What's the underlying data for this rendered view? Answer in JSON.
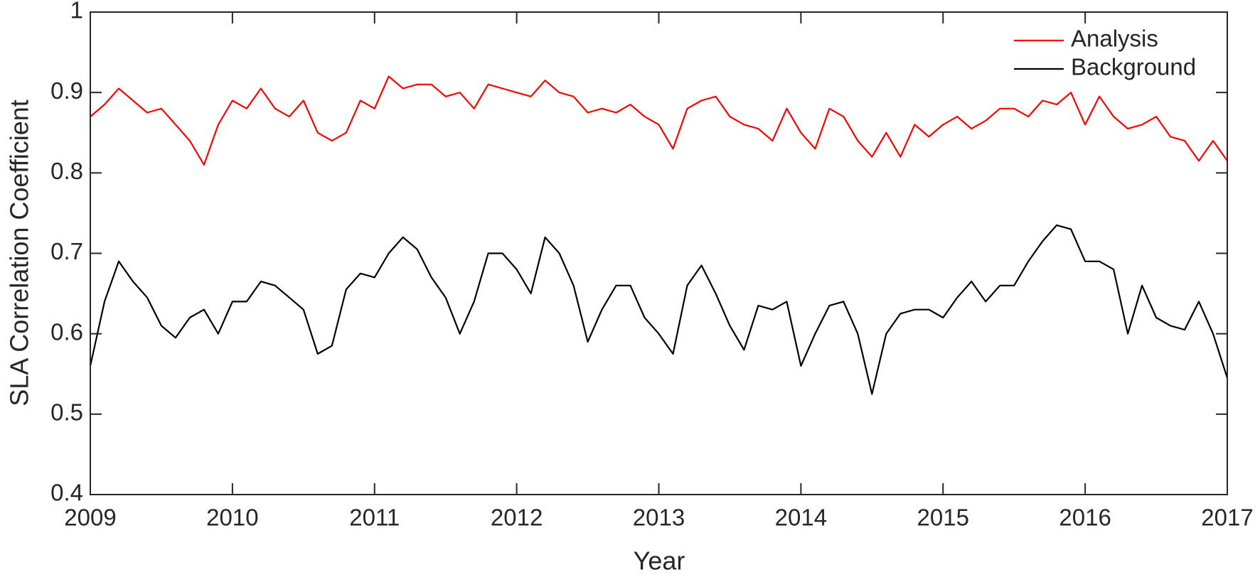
{
  "chart_data": {
    "type": "line",
    "xlabel": "Year",
    "ylabel": "SLA Correlation Coefficient",
    "xlim": [
      2009,
      2017
    ],
    "xticks": [
      2009,
      2010,
      2011,
      2012,
      2013,
      2014,
      2015,
      2016,
      2017
    ],
    "ylim": [
      0.4,
      1
    ],
    "yticks": [
      0.4,
      0.5,
      0.6,
      0.7,
      0.8,
      0.9,
      1
    ],
    "legend": "northeast",
    "x": [
      2009,
      2009.1,
      2009.2,
      2009.3,
      2009.4,
      2009.5,
      2009.6,
      2009.7,
      2009.8,
      2009.9,
      2010,
      2010.1,
      2010.2,
      2010.3,
      2010.4,
      2010.5,
      2010.6,
      2010.7,
      2010.8,
      2010.9,
      2011,
      2011.1,
      2011.2,
      2011.3,
      2011.4,
      2011.5,
      2011.6,
      2011.7,
      2011.8,
      2011.9,
      2012,
      2012.1,
      2012.2,
      2012.3,
      2012.4,
      2012.5,
      2012.6,
      2012.7,
      2012.8,
      2012.9,
      2013,
      2013.1,
      2013.2,
      2013.3,
      2013.4,
      2013.5,
      2013.6,
      2013.7,
      2013.8,
      2013.9,
      2014,
      2014.1,
      2014.2,
      2014.3,
      2014.4,
      2014.5,
      2014.6,
      2014.7,
      2014.8,
      2014.9,
      2015,
      2015.1,
      2015.2,
      2015.3,
      2015.4,
      2015.5,
      2015.6,
      2015.7,
      2015.8,
      2015.9,
      2016,
      2016.1,
      2016.2,
      2016.3,
      2016.4,
      2016.5,
      2016.6,
      2016.7,
      2016.8,
      2016.9,
      2017
    ],
    "series": [
      {
        "name": "Analysis",
        "color": "#ff0000",
        "values": [
          0.87,
          0.885,
          0.905,
          0.89,
          0.875,
          0.88,
          0.86,
          0.84,
          0.81,
          0.86,
          0.89,
          0.88,
          0.905,
          0.88,
          0.87,
          0.89,
          0.85,
          0.84,
          0.85,
          0.89,
          0.88,
          0.92,
          0.905,
          0.91,
          0.91,
          0.895,
          0.9,
          0.88,
          0.91,
          0.905,
          0.9,
          0.895,
          0.915,
          0.9,
          0.895,
          0.875,
          0.88,
          0.875,
          0.885,
          0.87,
          0.86,
          0.83,
          0.88,
          0.89,
          0.895,
          0.87,
          0.86,
          0.855,
          0.84,
          0.88,
          0.85,
          0.83,
          0.88,
          0.87,
          0.84,
          0.82,
          0.85,
          0.82,
          0.86,
          0.845,
          0.86,
          0.87,
          0.855,
          0.865,
          0.88,
          0.88,
          0.87,
          0.89,
          0.885,
          0.9,
          0.86,
          0.895,
          0.87,
          0.855,
          0.86,
          0.87,
          0.845,
          0.84,
          0.815,
          0.84,
          0.815
        ]
      },
      {
        "name": "Background",
        "color": "#000000",
        "values": [
          0.56,
          0.64,
          0.69,
          0.665,
          0.645,
          0.61,
          0.595,
          0.62,
          0.63,
          0.6,
          0.64,
          0.64,
          0.665,
          0.66,
          0.645,
          0.63,
          0.575,
          0.585,
          0.655,
          0.675,
          0.67,
          0.7,
          0.72,
          0.705,
          0.67,
          0.645,
          0.6,
          0.64,
          0.7,
          0.7,
          0.68,
          0.65,
          0.72,
          0.7,
          0.66,
          0.59,
          0.63,
          0.66,
          0.66,
          0.62,
          0.6,
          0.575,
          0.66,
          0.685,
          0.65,
          0.61,
          0.58,
          0.635,
          0.63,
          0.64,
          0.56,
          0.6,
          0.635,
          0.64,
          0.6,
          0.525,
          0.6,
          0.625,
          0.63,
          0.63,
          0.62,
          0.645,
          0.665,
          0.64,
          0.66,
          0.66,
          0.69,
          0.715,
          0.735,
          0.73,
          0.69,
          0.69,
          0.68,
          0.6,
          0.66,
          0.62,
          0.61,
          0.605,
          0.64,
          0.6,
          0.545
        ]
      }
    ]
  }
}
